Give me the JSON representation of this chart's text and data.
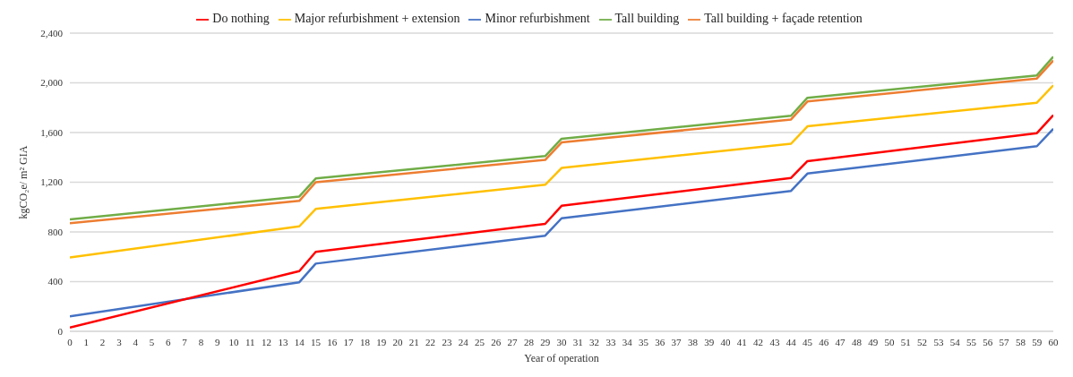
{
  "chart_data": {
    "type": "line",
    "xlabel": "Year of operation",
    "ylabel": "kgCO₂e/ m² GIA",
    "xlim": [
      0,
      60
    ],
    "xticks": [
      0,
      1,
      2,
      3,
      4,
      5,
      6,
      7,
      8,
      9,
      10,
      11,
      12,
      13,
      14,
      15,
      16,
      17,
      18,
      19,
      20,
      21,
      22,
      23,
      24,
      25,
      26,
      27,
      28,
      29,
      30,
      31,
      32,
      33,
      34,
      35,
      36,
      37,
      38,
      39,
      40,
      41,
      42,
      43,
      44,
      45,
      46,
      47,
      48,
      49,
      50,
      51,
      52,
      53,
      54,
      55,
      56,
      57,
      58,
      59,
      60
    ],
    "ylim": [
      0,
      2400
    ],
    "yticks": [
      {
        "value": 0,
        "label": "0"
      },
      {
        "value": 400,
        "label": "400"
      },
      {
        "value": 800,
        "label": "800"
      },
      {
        "value": 1200,
        "label": "1,200"
      },
      {
        "value": 1600,
        "label": "1,600"
      },
      {
        "value": 2000,
        "label": "2,000"
      },
      {
        "value": 2400,
        "label": "2,400"
      }
    ],
    "grid": "y",
    "legend": "top",
    "marker": "none",
    "line_style": "solid",
    "series": [
      {
        "name": "Tall building",
        "color": "#70ad47",
        "x": [
          0,
          14,
          15,
          29,
          30,
          44,
          45,
          59,
          60
        ],
        "values": [
          900,
          1085,
          1230,
          1410,
          1550,
          1735,
          1880,
          2060,
          2210
        ]
      },
      {
        "name": "Tall building + façade retention",
        "color": "#ed7d31",
        "x": [
          0,
          14,
          15,
          29,
          30,
          44,
          45,
          59,
          60
        ],
        "values": [
          870,
          1050,
          1200,
          1380,
          1520,
          1705,
          1850,
          2035,
          2180
        ]
      },
      {
        "name": "Major refurbishment + extension",
        "color": "#ffc000",
        "x": [
          0,
          14,
          15,
          29,
          30,
          44,
          45,
          59,
          60
        ],
        "values": [
          595,
          845,
          985,
          1180,
          1315,
          1510,
          1650,
          1840,
          1980
        ]
      },
      {
        "name": "Minor refurbishment",
        "color": "#4472c4",
        "x": [
          0,
          14,
          15,
          29,
          30,
          44,
          45,
          59,
          60
        ],
        "values": [
          120,
          395,
          545,
          770,
          910,
          1130,
          1270,
          1490,
          1630
        ]
      },
      {
        "name": "Do nothing",
        "color": "#ff0000",
        "x": [
          0,
          14,
          15,
          29,
          30,
          44,
          45,
          59,
          60
        ],
        "values": [
          30,
          485,
          640,
          865,
          1010,
          1235,
          1370,
          1595,
          1740
        ]
      }
    ]
  }
}
